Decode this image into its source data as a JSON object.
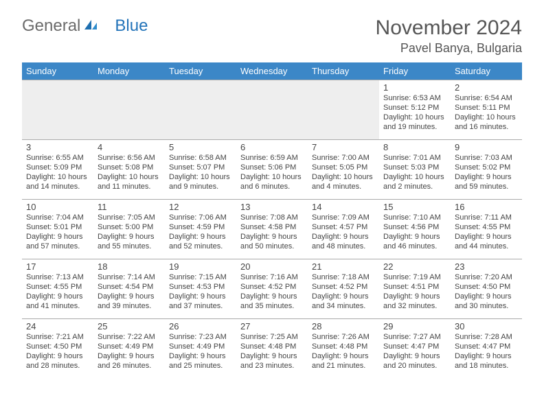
{
  "logo": {
    "part1": "General",
    "part2": "Blue"
  },
  "header": {
    "title": "November 2024",
    "location": "Pavel Banya, Bulgaria"
  },
  "weekdays": [
    "Sunday",
    "Monday",
    "Tuesday",
    "Wednesday",
    "Thursday",
    "Friday",
    "Saturday"
  ],
  "colors": {
    "header_bg": "#3c87c7",
    "header_text": "#ffffff",
    "empty_bg": "#eeeeee",
    "border": "#aaaaaa",
    "text": "#444444",
    "title_text": "#555555"
  },
  "layout": {
    "cols": 7,
    "first_weekday_index": 5,
    "days_in_month": 30
  },
  "days": {
    "1": {
      "sunrise": "Sunrise: 6:53 AM",
      "sunset": "Sunset: 5:12 PM",
      "daylight": "Daylight: 10 hours and 19 minutes."
    },
    "2": {
      "sunrise": "Sunrise: 6:54 AM",
      "sunset": "Sunset: 5:11 PM",
      "daylight": "Daylight: 10 hours and 16 minutes."
    },
    "3": {
      "sunrise": "Sunrise: 6:55 AM",
      "sunset": "Sunset: 5:09 PM",
      "daylight": "Daylight: 10 hours and 14 minutes."
    },
    "4": {
      "sunrise": "Sunrise: 6:56 AM",
      "sunset": "Sunset: 5:08 PM",
      "daylight": "Daylight: 10 hours and 11 minutes."
    },
    "5": {
      "sunrise": "Sunrise: 6:58 AM",
      "sunset": "Sunset: 5:07 PM",
      "daylight": "Daylight: 10 hours and 9 minutes."
    },
    "6": {
      "sunrise": "Sunrise: 6:59 AM",
      "sunset": "Sunset: 5:06 PM",
      "daylight": "Daylight: 10 hours and 6 minutes."
    },
    "7": {
      "sunrise": "Sunrise: 7:00 AM",
      "sunset": "Sunset: 5:05 PM",
      "daylight": "Daylight: 10 hours and 4 minutes."
    },
    "8": {
      "sunrise": "Sunrise: 7:01 AM",
      "sunset": "Sunset: 5:03 PM",
      "daylight": "Daylight: 10 hours and 2 minutes."
    },
    "9": {
      "sunrise": "Sunrise: 7:03 AM",
      "sunset": "Sunset: 5:02 PM",
      "daylight": "Daylight: 9 hours and 59 minutes."
    },
    "10": {
      "sunrise": "Sunrise: 7:04 AM",
      "sunset": "Sunset: 5:01 PM",
      "daylight": "Daylight: 9 hours and 57 minutes."
    },
    "11": {
      "sunrise": "Sunrise: 7:05 AM",
      "sunset": "Sunset: 5:00 PM",
      "daylight": "Daylight: 9 hours and 55 minutes."
    },
    "12": {
      "sunrise": "Sunrise: 7:06 AM",
      "sunset": "Sunset: 4:59 PM",
      "daylight": "Daylight: 9 hours and 52 minutes."
    },
    "13": {
      "sunrise": "Sunrise: 7:08 AM",
      "sunset": "Sunset: 4:58 PM",
      "daylight": "Daylight: 9 hours and 50 minutes."
    },
    "14": {
      "sunrise": "Sunrise: 7:09 AM",
      "sunset": "Sunset: 4:57 PM",
      "daylight": "Daylight: 9 hours and 48 minutes."
    },
    "15": {
      "sunrise": "Sunrise: 7:10 AM",
      "sunset": "Sunset: 4:56 PM",
      "daylight": "Daylight: 9 hours and 46 minutes."
    },
    "16": {
      "sunrise": "Sunrise: 7:11 AM",
      "sunset": "Sunset: 4:55 PM",
      "daylight": "Daylight: 9 hours and 44 minutes."
    },
    "17": {
      "sunrise": "Sunrise: 7:13 AM",
      "sunset": "Sunset: 4:55 PM",
      "daylight": "Daylight: 9 hours and 41 minutes."
    },
    "18": {
      "sunrise": "Sunrise: 7:14 AM",
      "sunset": "Sunset: 4:54 PM",
      "daylight": "Daylight: 9 hours and 39 minutes."
    },
    "19": {
      "sunrise": "Sunrise: 7:15 AM",
      "sunset": "Sunset: 4:53 PM",
      "daylight": "Daylight: 9 hours and 37 minutes."
    },
    "20": {
      "sunrise": "Sunrise: 7:16 AM",
      "sunset": "Sunset: 4:52 PM",
      "daylight": "Daylight: 9 hours and 35 minutes."
    },
    "21": {
      "sunrise": "Sunrise: 7:18 AM",
      "sunset": "Sunset: 4:52 PM",
      "daylight": "Daylight: 9 hours and 34 minutes."
    },
    "22": {
      "sunrise": "Sunrise: 7:19 AM",
      "sunset": "Sunset: 4:51 PM",
      "daylight": "Daylight: 9 hours and 32 minutes."
    },
    "23": {
      "sunrise": "Sunrise: 7:20 AM",
      "sunset": "Sunset: 4:50 PM",
      "daylight": "Daylight: 9 hours and 30 minutes."
    },
    "24": {
      "sunrise": "Sunrise: 7:21 AM",
      "sunset": "Sunset: 4:50 PM",
      "daylight": "Daylight: 9 hours and 28 minutes."
    },
    "25": {
      "sunrise": "Sunrise: 7:22 AM",
      "sunset": "Sunset: 4:49 PM",
      "daylight": "Daylight: 9 hours and 26 minutes."
    },
    "26": {
      "sunrise": "Sunrise: 7:23 AM",
      "sunset": "Sunset: 4:49 PM",
      "daylight": "Daylight: 9 hours and 25 minutes."
    },
    "27": {
      "sunrise": "Sunrise: 7:25 AM",
      "sunset": "Sunset: 4:48 PM",
      "daylight": "Daylight: 9 hours and 23 minutes."
    },
    "28": {
      "sunrise": "Sunrise: 7:26 AM",
      "sunset": "Sunset: 4:48 PM",
      "daylight": "Daylight: 9 hours and 21 minutes."
    },
    "29": {
      "sunrise": "Sunrise: 7:27 AM",
      "sunset": "Sunset: 4:47 PM",
      "daylight": "Daylight: 9 hours and 20 minutes."
    },
    "30": {
      "sunrise": "Sunrise: 7:28 AM",
      "sunset": "Sunset: 4:47 PM",
      "daylight": "Daylight: 9 hours and 18 minutes."
    }
  }
}
